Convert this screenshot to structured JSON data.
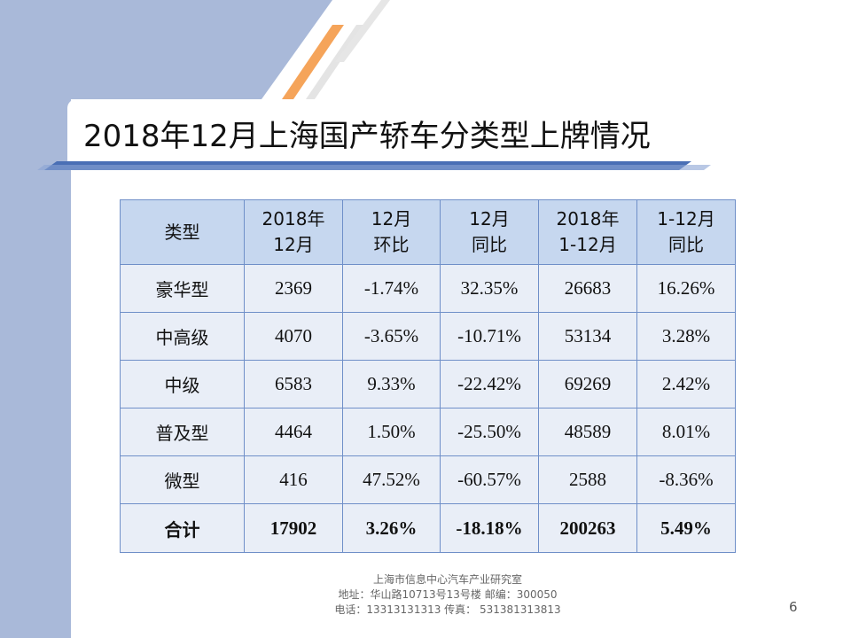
{
  "slide": {
    "title": "2018年12月上海国产轿车分类型上牌情况",
    "page_number": "6"
  },
  "table": {
    "headers": [
      [
        "类型"
      ],
      [
        "2018年",
        "12月"
      ],
      [
        "12月",
        "环比"
      ],
      [
        "12月",
        "同比"
      ],
      [
        "2018年",
        "1-12月"
      ],
      [
        "1-12月",
        "同比"
      ]
    ],
    "rows": [
      [
        "豪华型",
        "2369",
        "-1.74%",
        "32.35%",
        "26683",
        "16.26%"
      ],
      [
        "中高级",
        "4070",
        "-3.65%",
        "-10.71%",
        "53134",
        "3.28%"
      ],
      [
        "中级",
        "6583",
        "9.33%",
        "-22.42%",
        "69269",
        "2.42%"
      ],
      [
        "普及型",
        "4464",
        "1.50%",
        "-25.50%",
        "48589",
        "8.01%"
      ],
      [
        "微型",
        "416",
        "47.52%",
        "-60.57%",
        "2588",
        "-8.36%"
      ],
      [
        "合计",
        "17902",
        "3.26%",
        "-18.18%",
        "200263",
        "5.49%"
      ]
    ]
  },
  "footer": {
    "line1": "上海市信息中心汽车产业研究室",
    "line2": "地址：华山路10713号13号楼    邮编：300050",
    "line3": "电话：13313131313  传真： 531381313813"
  },
  "colors": {
    "header_fill": "#c6d7ef",
    "body_fill": "#e9eef7",
    "border": "#6f8fc8",
    "left_band": "#a9b9d9",
    "accent_orange": "#f5a45a",
    "underline_blue": "#4a6fb5"
  }
}
